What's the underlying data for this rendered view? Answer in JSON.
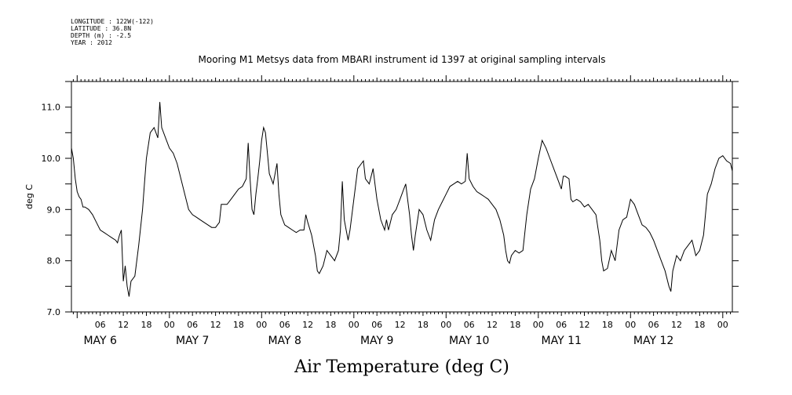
{
  "header": {
    "longitude": "LONGITUDE : 122W(-122)",
    "latitude": "LATITUDE : 36.8N",
    "depth": "DEPTH (m) : -2.5",
    "year": "YEAR : 2012"
  },
  "chart_data": {
    "type": "line",
    "title": "Mooring M1 Metsys data from MBARI instrument id 1397 at original sampling intervals",
    "xlabel": "Air Temperature (deg C)",
    "ylabel": "deg C",
    "ylim": [
      7.0,
      11.5
    ],
    "xlim_hours": [
      -1.5,
      170.5
    ],
    "x_unit_note": "hours from May 6 00:00",
    "yticks": [
      "7.0",
      "8.0",
      "9.0",
      "10.0",
      "11.0"
    ],
    "ytick_values": [
      7.0,
      8.0,
      9.0,
      10.0,
      11.0
    ],
    "hour_tick_labels": [
      "06",
      "12",
      "18",
      "00"
    ],
    "day_labels": [
      "MAY 6",
      "MAY 7",
      "MAY 8",
      "MAY 9",
      "MAY 10",
      "MAY 11",
      "MAY 12"
    ],
    "grid": false,
    "series": [
      {
        "points": [
          [
            -1.5,
            10.2
          ],
          [
            -1,
            10.0
          ],
          [
            -0.5,
            9.6
          ],
          [
            0,
            9.35
          ],
          [
            0.5,
            9.25
          ],
          [
            1,
            9.2
          ],
          [
            1.5,
            9.05
          ],
          [
            2,
            9.05
          ],
          [
            3,
            9.0
          ],
          [
            4,
            8.9
          ],
          [
            5,
            8.75
          ],
          [
            6,
            8.6
          ],
          [
            7,
            8.55
          ],
          [
            8,
            8.5
          ],
          [
            9,
            8.45
          ],
          [
            10,
            8.4
          ],
          [
            10.5,
            8.35
          ],
          [
            11,
            8.5
          ],
          [
            11.5,
            8.6
          ],
          [
            12,
            7.6
          ],
          [
            12.5,
            7.9
          ],
          [
            13,
            7.5
          ],
          [
            13.5,
            7.3
          ],
          [
            14,
            7.6
          ],
          [
            15,
            7.7
          ],
          [
            16,
            8.3
          ],
          [
            17,
            9.0
          ],
          [
            17.5,
            9.5
          ],
          [
            18,
            10.0
          ],
          [
            19,
            10.5
          ],
          [
            20,
            10.6
          ],
          [
            21,
            10.4
          ],
          [
            21.5,
            11.1
          ],
          [
            22,
            10.6
          ],
          [
            23,
            10.4
          ],
          [
            24,
            10.2
          ],
          [
            25,
            10.1
          ],
          [
            26,
            9.9
          ],
          [
            27,
            9.6
          ],
          [
            28,
            9.3
          ],
          [
            29,
            9.0
          ],
          [
            30,
            8.9
          ],
          [
            31,
            8.85
          ],
          [
            32,
            8.8
          ],
          [
            33,
            8.75
          ],
          [
            34,
            8.7
          ],
          [
            35,
            8.65
          ],
          [
            36,
            8.65
          ],
          [
            37,
            8.75
          ],
          [
            37.5,
            9.1
          ],
          [
            38,
            9.1
          ],
          [
            39,
            9.1
          ],
          [
            40,
            9.2
          ],
          [
            41,
            9.3
          ],
          [
            42,
            9.4
          ],
          [
            43,
            9.45
          ],
          [
            44,
            9.6
          ],
          [
            44.5,
            10.3
          ],
          [
            45,
            9.6
          ],
          [
            45.5,
            9.0
          ],
          [
            46,
            8.9
          ],
          [
            46.5,
            9.3
          ],
          [
            47,
            9.6
          ],
          [
            47.5,
            9.95
          ],
          [
            48,
            10.35
          ],
          [
            48.5,
            10.6
          ],
          [
            49,
            10.5
          ],
          [
            49.5,
            10.1
          ],
          [
            50,
            9.7
          ],
          [
            51,
            9.5
          ],
          [
            52,
            9.9
          ],
          [
            52.5,
            9.3
          ],
          [
            53,
            8.9
          ],
          [
            54,
            8.7
          ],
          [
            55,
            8.65
          ],
          [
            56,
            8.6
          ],
          [
            57,
            8.55
          ],
          [
            58,
            8.6
          ],
          [
            59,
            8.6
          ],
          [
            59.5,
            8.9
          ],
          [
            60,
            8.75
          ],
          [
            61,
            8.5
          ],
          [
            62,
            8.1
          ],
          [
            62.5,
            7.8
          ],
          [
            63,
            7.75
          ],
          [
            64,
            7.9
          ],
          [
            65,
            8.2
          ],
          [
            66,
            8.1
          ],
          [
            67,
            8.0
          ],
          [
            68,
            8.2
          ],
          [
            68.5,
            8.6
          ],
          [
            69,
            9.55
          ],
          [
            69.5,
            8.8
          ],
          [
            70,
            8.6
          ],
          [
            70.5,
            8.4
          ],
          [
            71,
            8.6
          ],
          [
            72,
            9.2
          ],
          [
            73,
            9.8
          ],
          [
            74,
            9.9
          ],
          [
            74.5,
            9.95
          ],
          [
            75,
            9.6
          ],
          [
            76,
            9.5
          ],
          [
            77,
            9.8
          ],
          [
            77.5,
            9.5
          ],
          [
            78,
            9.2
          ],
          [
            79,
            8.8
          ],
          [
            80,
            8.6
          ],
          [
            80.5,
            8.8
          ],
          [
            81,
            8.6
          ],
          [
            82,
            8.9
          ],
          [
            83,
            9.0
          ],
          [
            84,
            9.2
          ],
          [
            85,
            9.4
          ],
          [
            85.5,
            9.5
          ],
          [
            86,
            9.2
          ],
          [
            86.5,
            8.9
          ],
          [
            87,
            8.5
          ],
          [
            87.5,
            8.2
          ],
          [
            88,
            8.5
          ],
          [
            89,
            9.0
          ],
          [
            90,
            8.9
          ],
          [
            91,
            8.6
          ],
          [
            92,
            8.4
          ],
          [
            93,
            8.8
          ],
          [
            94,
            9.0
          ],
          [
            95,
            9.15
          ],
          [
            96,
            9.3
          ],
          [
            97,
            9.45
          ],
          [
            98,
            9.5
          ],
          [
            99,
            9.55
          ],
          [
            100,
            9.5
          ],
          [
            101,
            9.55
          ],
          [
            101.5,
            10.1
          ],
          [
            102,
            9.6
          ],
          [
            103,
            9.45
          ],
          [
            104,
            9.35
          ],
          [
            105,
            9.3
          ],
          [
            106,
            9.25
          ],
          [
            107,
            9.2
          ],
          [
            108,
            9.1
          ],
          [
            109,
            9.0
          ],
          [
            110,
            8.8
          ],
          [
            111,
            8.5
          ],
          [
            111.5,
            8.2
          ],
          [
            112,
            8.0
          ],
          [
            112.5,
            7.95
          ],
          [
            113,
            8.1
          ],
          [
            114,
            8.2
          ],
          [
            115,
            8.15
          ],
          [
            116,
            8.2
          ],
          [
            117,
            8.9
          ],
          [
            118,
            9.4
          ],
          [
            119,
            9.6
          ],
          [
            120,
            10.0
          ],
          [
            121,
            10.35
          ],
          [
            122,
            10.2
          ],
          [
            123,
            10.0
          ],
          [
            124,
            9.8
          ],
          [
            125,
            9.6
          ],
          [
            126,
            9.4
          ],
          [
            126.5,
            9.65
          ],
          [
            127,
            9.65
          ],
          [
            128,
            9.6
          ],
          [
            128.5,
            9.2
          ],
          [
            129,
            9.15
          ],
          [
            130,
            9.2
          ],
          [
            131,
            9.15
          ],
          [
            132,
            9.05
          ],
          [
            133,
            9.1
          ],
          [
            134,
            9.0
          ],
          [
            135,
            8.9
          ],
          [
            136,
            8.4
          ],
          [
            136.5,
            8.0
          ],
          [
            137,
            7.8
          ],
          [
            138,
            7.85
          ],
          [
            139,
            8.2
          ],
          [
            140,
            8.0
          ],
          [
            141,
            8.6
          ],
          [
            142,
            8.8
          ],
          [
            143,
            8.85
          ],
          [
            144,
            9.2
          ],
          [
            145,
            9.1
          ],
          [
            146,
            8.9
          ],
          [
            147,
            8.7
          ],
          [
            148,
            8.65
          ],
          [
            149,
            8.55
          ],
          [
            150,
            8.4
          ],
          [
            151,
            8.2
          ],
          [
            152,
            8.0
          ],
          [
            153,
            7.8
          ],
          [
            154,
            7.5
          ],
          [
            154.5,
            7.4
          ],
          [
            155,
            7.8
          ],
          [
            156,
            8.1
          ],
          [
            157,
            8.0
          ],
          [
            158,
            8.2
          ],
          [
            159,
            8.3
          ],
          [
            160,
            8.4
          ],
          [
            161,
            8.1
          ],
          [
            162,
            8.2
          ],
          [
            163,
            8.5
          ],
          [
            164,
            9.3
          ],
          [
            165,
            9.5
          ],
          [
            166,
            9.8
          ],
          [
            167,
            10.0
          ],
          [
            168,
            10.05
          ],
          [
            169,
            9.95
          ],
          [
            170,
            9.9
          ],
          [
            170.5,
            9.75
          ]
        ]
      }
    ]
  }
}
